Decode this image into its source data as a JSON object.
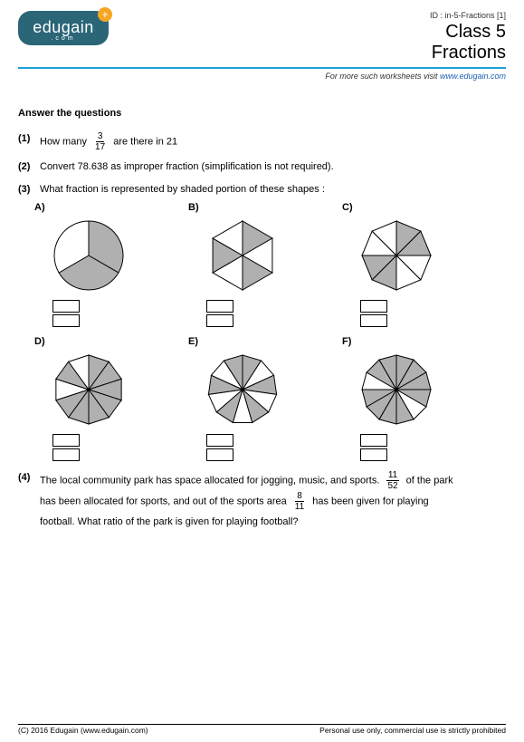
{
  "header": {
    "logo_main": "edugain",
    "logo_sub": ".com",
    "badge": "+",
    "id_line": "ID : in-5-Fractions [1]",
    "title": "Class 5",
    "subtitle": "Fractions",
    "divider_color": "#1aa0d8",
    "visit_prefix": "For more such worksheets visit ",
    "visit_link": "www.edugain.com"
  },
  "section_title": "Answer the questions",
  "q1": {
    "num": "(1)",
    "pre": "How many ",
    "frac_num": "3",
    "frac_den": "17",
    "post": " are there in 21"
  },
  "q2": {
    "num": "(2)",
    "text": "Convert 78.638 as improper fraction (simplification is not required)."
  },
  "q3": {
    "num": "(3)",
    "text": "What fraction is represented by shaded portion of these shapes :",
    "fill": "#b0b0b0",
    "stroke": "#000000",
    "shapes": [
      {
        "label": "A)",
        "sides": 0,
        "slices": 3,
        "shaded": [
          0,
          1
        ]
      },
      {
        "label": "B)",
        "sides": 6,
        "slices": 6,
        "shaded": [
          0,
          2,
          4
        ]
      },
      {
        "label": "C)",
        "sides": 8,
        "slices": 8,
        "shaded": [
          0,
          1,
          4,
          5
        ]
      },
      {
        "label": "D)",
        "sides": 10,
        "slices": 10,
        "shaded": [
          0,
          1,
          2,
          3,
          4,
          5,
          6,
          8
        ]
      },
      {
        "label": "E)",
        "sides": 11,
        "slices": 11,
        "shaded": [
          0,
          2,
          4,
          6,
          8,
          10
        ]
      },
      {
        "label": "F)",
        "sides": 12,
        "slices": 12,
        "shaded": [
          0,
          1,
          2,
          3,
          5,
          6,
          7,
          8,
          10,
          11
        ]
      }
    ]
  },
  "q4": {
    "num": "(4)",
    "t1": "The local community park has space allocated for jogging, music, and sports. ",
    "f1_num": "11",
    "f1_den": "52",
    "t2": " of the park",
    "t3": "has been allocated for sports, and out of the sports area ",
    "f2_num": "8",
    "f2_den": "11",
    "t4": " has been given for playing",
    "t5": "football. What ratio of the park is given for playing football?"
  },
  "footer": {
    "left": "(C) 2016 Edugain (www.edugain.com)",
    "right": "Personal use only, commercial use is strictly prohibited"
  }
}
